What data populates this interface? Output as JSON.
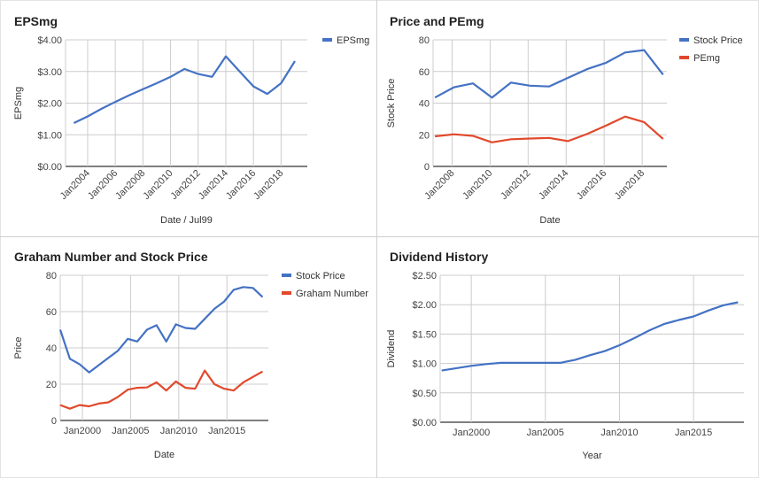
{
  "colors": {
    "blue": "#4472c4",
    "red": "#e0492b",
    "grid": "#cccccc",
    "axis": "#333333",
    "tick": "#444444"
  },
  "chart_data": [
    {
      "type": "line",
      "title": "EPSmg",
      "xlabel": "Date / Jul99",
      "ylabel": "EPSmg",
      "ylim": [
        0,
        4
      ],
      "xlim": [
        2002.4,
        2019.9
      ],
      "ytick_values": [
        0,
        1,
        2,
        3,
        4
      ],
      "ytick_labels": [
        "$0.00",
        "$1.00",
        "$2.00",
        "$3.00",
        "$4.00"
      ],
      "xtick_values": [
        2004,
        2006,
        2008,
        2010,
        2012,
        2014,
        2016,
        2018
      ],
      "xtick_labels": [
        "Jan2004",
        "Jan2006",
        "Jan2008",
        "Jan2010",
        "Jan2012",
        "Jan2014",
        "Jan2016",
        "Jan2018"
      ],
      "xtick_rotate": true,
      "grid": true,
      "legend": "top-right",
      "series": [
        {
          "name": "EPSmg",
          "color": "#4472c4",
          "x": [
            2003,
            2004,
            2005,
            2006,
            2007,
            2008,
            2009,
            2010,
            2011,
            2012,
            2013,
            2014,
            2015,
            2016,
            2017,
            2018,
            2019
          ],
          "values": [
            1.37,
            1.58,
            1.82,
            2.04,
            2.25,
            2.44,
            2.63,
            2.83,
            3.08,
            2.92,
            2.83,
            3.48,
            3.0,
            2.53,
            2.29,
            2.63,
            3.33
          ]
        }
      ]
    },
    {
      "type": "line",
      "title": "Price and PEmg",
      "xlabel": "Date",
      "ylabel": "Stock Price",
      "ylim": [
        0,
        80
      ],
      "xlim": [
        2007.0,
        2019.3
      ],
      "ytick_values": [
        0,
        20,
        40,
        60,
        80
      ],
      "ytick_labels": [
        "0",
        "20",
        "40",
        "60",
        "80"
      ],
      "xtick_values": [
        2008,
        2010,
        2012,
        2014,
        2016,
        2018
      ],
      "xtick_labels": [
        "Jan2008",
        "Jan2010",
        "Jan2012",
        "Jan2014",
        "Jan2016",
        "Jan2018"
      ],
      "xtick_rotate": true,
      "grid": true,
      "legend": "top-right",
      "series": [
        {
          "name": "Stock Price",
          "color": "#4472c4",
          "x": [
            2007.1,
            2008.1,
            2009.1,
            2010.1,
            2011.1,
            2012.1,
            2013.1,
            2014.1,
            2015.1,
            2016.1,
            2017.1,
            2018.1,
            2019.1
          ],
          "values": [
            43.5,
            50.0,
            52.5,
            43.5,
            53.0,
            51.0,
            50.5,
            56.0,
            61.5,
            65.5,
            72.0,
            73.5,
            58.0
          ]
        },
        {
          "name": "PEmg",
          "color": "#e0492b",
          "x": [
            2007.1,
            2008.1,
            2009.1,
            2010.1,
            2011.1,
            2012.1,
            2013.1,
            2014.1,
            2015.1,
            2016.1,
            2017.1,
            2018.1,
            2019.1
          ],
          "values": [
            19.0,
            20.3,
            19.3,
            15.2,
            17.2,
            17.6,
            18.0,
            16.0,
            20.5,
            25.8,
            31.5,
            28.0,
            17.4
          ]
        }
      ]
    },
    {
      "type": "line",
      "title": "Graham Number and Stock Price",
      "xlabel": "Date",
      "ylabel": "Price",
      "ylim": [
        0,
        80
      ],
      "xlim": [
        1997.7,
        2019.3
      ],
      "ytick_values": [
        0,
        20,
        40,
        60,
        80
      ],
      "ytick_labels": [
        "0",
        "20",
        "40",
        "60",
        "80"
      ],
      "xtick_values": [
        2000,
        2005,
        2010,
        2015
      ],
      "xtick_labels": [
        "Jan2000",
        "Jan2005",
        "Jan2010",
        "Jan2015"
      ],
      "xtick_rotate": false,
      "grid": true,
      "legend": "top-right",
      "series": [
        {
          "name": "Stock Price",
          "color": "#4472c4",
          "x": [
            1997.7,
            1998.7,
            1999.7,
            2000.7,
            2001.7,
            2002.7,
            2003.7,
            2004.7,
            2005.7,
            2006.7,
            2007.7,
            2008.7,
            2009.7,
            2010.7,
            2011.7,
            2012.7,
            2013.7,
            2014.7,
            2015.7,
            2016.7,
            2017.7,
            2018.7
          ],
          "values": [
            50.0,
            34.0,
            31.0,
            26.5,
            30.5,
            34.5,
            38.5,
            45.0,
            43.5,
            50.0,
            52.5,
            43.5,
            53.0,
            51.0,
            50.5,
            56.0,
            61.5,
            65.5,
            72.0,
            73.5,
            73.0,
            68.0
          ]
        },
        {
          "name": "Graham Number",
          "color": "#e0492b",
          "x": [
            1997.7,
            1998.7,
            1999.7,
            2000.7,
            2001.7,
            2002.7,
            2003.7,
            2004.7,
            2005.7,
            2006.7,
            2007.7,
            2008.7,
            2009.7,
            2010.7,
            2011.7,
            2012.7,
            2013.7,
            2014.7,
            2015.7,
            2016.7,
            2017.7,
            2018.7
          ],
          "values": [
            8.5,
            6.5,
            8.5,
            7.8,
            9.3,
            10.0,
            13.0,
            17.0,
            18.0,
            18.2,
            21.0,
            16.5,
            21.5,
            18.0,
            17.5,
            27.5,
            20.0,
            17.5,
            16.5,
            21.0,
            24.0,
            27.0
          ]
        }
      ]
    },
    {
      "type": "line",
      "title": "Dividend History",
      "xlabel": "Year",
      "ylabel": "Dividend",
      "ylim": [
        0,
        2.5
      ],
      "xlim": [
        1997.9,
        2018.4
      ],
      "ytick_values": [
        0,
        0.5,
        1.0,
        1.5,
        2.0,
        2.5
      ],
      "ytick_labels": [
        "$0.00",
        "$0.50",
        "$1.00",
        "$1.50",
        "$2.00",
        "$2.50"
      ],
      "xtick_values": [
        2000,
        2005,
        2010,
        2015
      ],
      "xtick_labels": [
        "Jan2000",
        "Jan2005",
        "Jan2010",
        "Jan2015"
      ],
      "xtick_rotate": false,
      "grid": true,
      "legend": "none",
      "series": [
        {
          "name": "",
          "color": "#4472c4",
          "x": [
            1998,
            1999,
            2000,
            2001,
            2002,
            2003,
            2004,
            2005,
            2006,
            2007,
            2008,
            2009,
            2010,
            2011,
            2012,
            2013,
            2014,
            2015,
            2016,
            2017,
            2018
          ],
          "values": [
            0.88,
            0.92,
            0.96,
            0.99,
            1.01,
            1.01,
            1.01,
            1.01,
            1.01,
            1.06,
            1.14,
            1.21,
            1.31,
            1.43,
            1.56,
            1.67,
            1.74,
            1.8,
            1.9,
            1.99,
            2.04
          ]
        }
      ]
    }
  ]
}
